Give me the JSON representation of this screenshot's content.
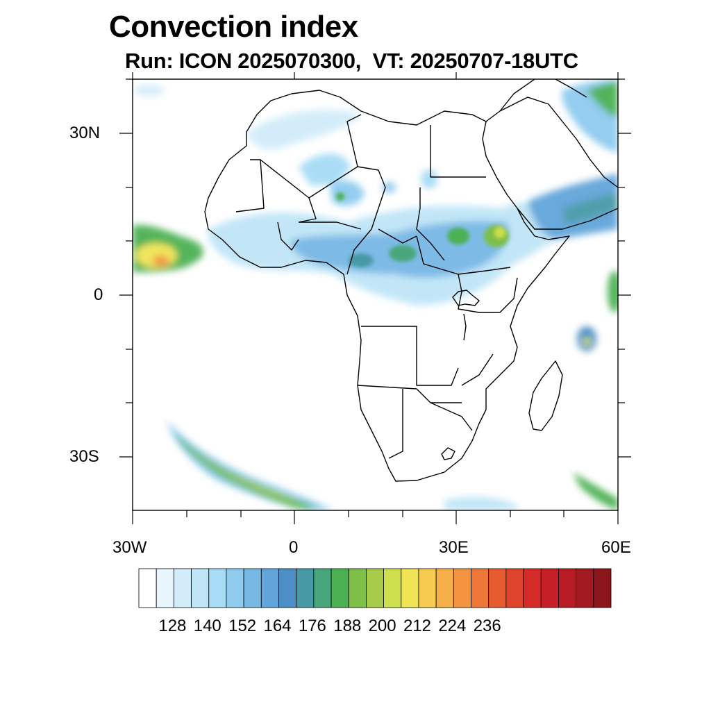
{
  "title": "Convection index",
  "subtitle": "Run: ICON 2025070300,  VT: 20250707-18UTC",
  "map": {
    "extent": {
      "lon_min": -30,
      "lon_max": 60,
      "lat_min": -40,
      "lat_max": 40
    },
    "lat_labels": [
      "30N",
      "0",
      "30S"
    ],
    "lon_labels": [
      "30W",
      "0",
      "30E",
      "60E"
    ],
    "land_border_color": "#000000",
    "ocean_color": "#ffffff"
  },
  "colorbar": {
    "levels_shown": [
      "128",
      "140",
      "152",
      "164",
      "176",
      "188",
      "200",
      "212",
      "224",
      "236"
    ],
    "colors": [
      "#ffffff",
      "#e8f5fc",
      "#d2ecf9",
      "#bfe5f7",
      "#a6dcf5",
      "#8ecbef",
      "#77b8e5",
      "#62a5da",
      "#4c8fc6",
      "#4799a6",
      "#48a67c",
      "#4bb153",
      "#7dbf47",
      "#a8cb4a",
      "#cedf4e",
      "#f0e455",
      "#f7cb4f",
      "#f6b04a",
      "#f49340",
      "#ee7737",
      "#e65b30",
      "#de432b",
      "#d42b29",
      "#c71f27",
      "#b71c24",
      "#a31a21",
      "#8b161c"
    ]
  }
}
